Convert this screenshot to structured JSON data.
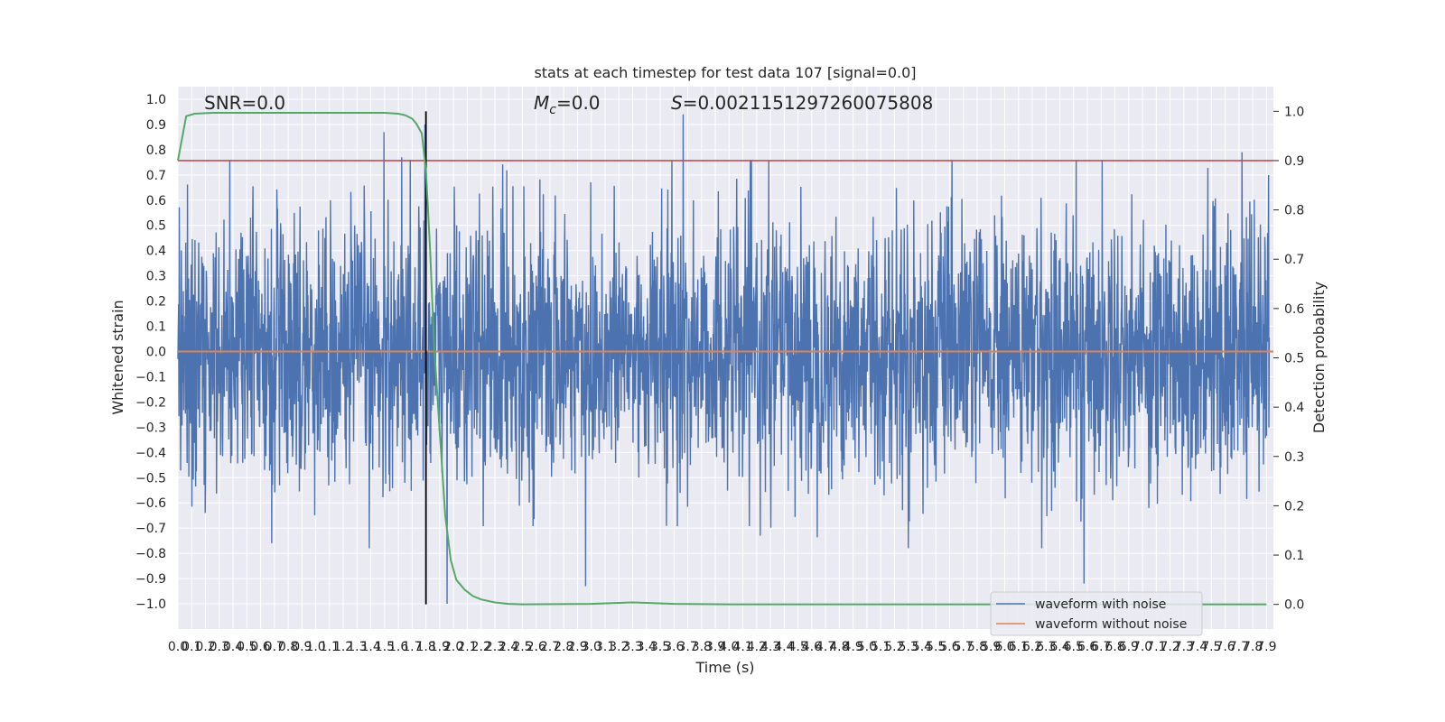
{
  "chart_data": {
    "type": "line",
    "title": "stats at each timestep for test data 107 [signal=0.0]",
    "xlabel": "Time (s)",
    "ylabel": "Whitened strain",
    "y2label": "Detection probability",
    "xlim": [
      0.0,
      7.95
    ],
    "ylim": [
      -1.1,
      1.05
    ],
    "y2lim": [
      -0.05,
      1.05
    ],
    "x_ticks": [
      "0.0",
      "0.1",
      "0.2",
      "0.3",
      "0.4",
      "0.5",
      "0.6",
      "0.7",
      "0.8",
      "0.9",
      "1.0",
      "1.1",
      "1.2",
      "1.3",
      "1.4",
      "1.5",
      "1.6",
      "1.7",
      "1.8",
      "1.9",
      "2.0",
      "2.1",
      "2.2",
      "2.3",
      "2.4",
      "2.5",
      "2.6",
      "2.7",
      "2.8",
      "2.9",
      "3.0",
      "3.1",
      "3.2",
      "3.3",
      "3.4",
      "3.5",
      "3.6",
      "3.7",
      "3.8",
      "3.9",
      "4.0",
      "4.1",
      "4.2",
      "4.3",
      "4.4",
      "4.5",
      "4.6",
      "4.7",
      "4.8",
      "4.9",
      "5.0",
      "5.1",
      "5.2",
      "5.3",
      "5.4",
      "5.5",
      "5.6",
      "5.7",
      "5.8",
      "5.9",
      "6.0",
      "6.1",
      "6.2",
      "6.3",
      "6.4",
      "6.5",
      "6.6",
      "6.7",
      "6.8",
      "6.9",
      "7.0",
      "7.1",
      "7.2",
      "7.3",
      "7.4",
      "7.5",
      "7.6",
      "7.7",
      "7.8",
      "7.9"
    ],
    "y_ticks": [
      "1.0",
      "0.9",
      "0.8",
      "0.7",
      "0.6",
      "0.5",
      "0.4",
      "0.3",
      "0.2",
      "0.1",
      "0.0",
      "−0.1",
      "−0.2",
      "−0.3",
      "−0.4",
      "−0.5",
      "−0.6",
      "−0.7",
      "−0.8",
      "−0.9",
      "−1.0"
    ],
    "y2_ticks": [
      "1.0",
      "0.9",
      "0.8",
      "0.7",
      "0.6",
      "0.5",
      "0.4",
      "0.3",
      "0.2",
      "0.1",
      "0.0"
    ],
    "grid": true,
    "annotations": {
      "snr": "SNR=0.0",
      "mc_symbol": "M",
      "mc_sub": "c",
      "mc_value": "=0.0",
      "s_symbol": "S",
      "s_value": "=0.0021151297260075808"
    },
    "series": [
      {
        "name": "waveform with noise",
        "axis": "left",
        "color": "#4c72b0",
        "kind": "noise",
        "envelope_typical": [
          -0.45,
          0.45
        ],
        "peaks": [
          {
            "x": 1.5,
            "y": 0.87
          },
          {
            "x": 1.63,
            "y": 0.77
          },
          {
            "x": 1.8,
            "y": 0.9
          },
          {
            "x": 3.68,
            "y": 0.94
          },
          {
            "x": 7.75,
            "y": 0.79
          },
          {
            "x": 2.97,
            "y": -0.93
          },
          {
            "x": 6.6,
            "y": -0.92
          },
          {
            "x": 1.96,
            "y": -1.0
          }
        ]
      },
      {
        "name": "waveform without noise",
        "axis": "left",
        "color": "#dd8452",
        "x": [
          0.0,
          7.95
        ],
        "y": [
          0.0,
          0.0
        ]
      },
      {
        "name": "detection probability",
        "axis": "right",
        "color": "#55a868",
        "x": [
          0.0,
          0.06,
          0.12,
          0.25,
          0.5,
          1.0,
          1.2,
          1.4,
          1.5,
          1.55,
          1.6,
          1.65,
          1.7,
          1.73,
          1.77,
          1.8,
          1.83,
          1.86,
          1.9,
          1.94,
          1.98,
          2.02,
          2.08,
          2.14,
          2.2,
          2.3,
          2.4,
          2.5,
          3.0,
          3.2,
          3.3,
          3.4,
          3.6,
          4.0,
          5.0,
          6.0,
          7.0,
          7.9
        ],
        "y": [
          0.9,
          0.99,
          0.995,
          0.997,
          0.997,
          0.997,
          0.997,
          0.997,
          0.997,
          0.996,
          0.995,
          0.992,
          0.985,
          0.975,
          0.955,
          0.88,
          0.72,
          0.52,
          0.35,
          0.18,
          0.09,
          0.05,
          0.03,
          0.017,
          0.01,
          0.004,
          0.001,
          0.0,
          0.001,
          0.003,
          0.004,
          0.003,
          0.001,
          0.0,
          0.0,
          0.0,
          0.0,
          0.0
        ]
      }
    ],
    "threshold": {
      "axis": "right",
      "value": 0.9,
      "color": "#c44e52"
    },
    "vertical_marker": {
      "x": 1.8,
      "ymin": 0.0,
      "ymax": 1.0,
      "color": "#000000"
    },
    "legend": {
      "placement": "bottom-right",
      "entries": [
        "waveform with noise",
        "waveform without noise"
      ]
    }
  }
}
